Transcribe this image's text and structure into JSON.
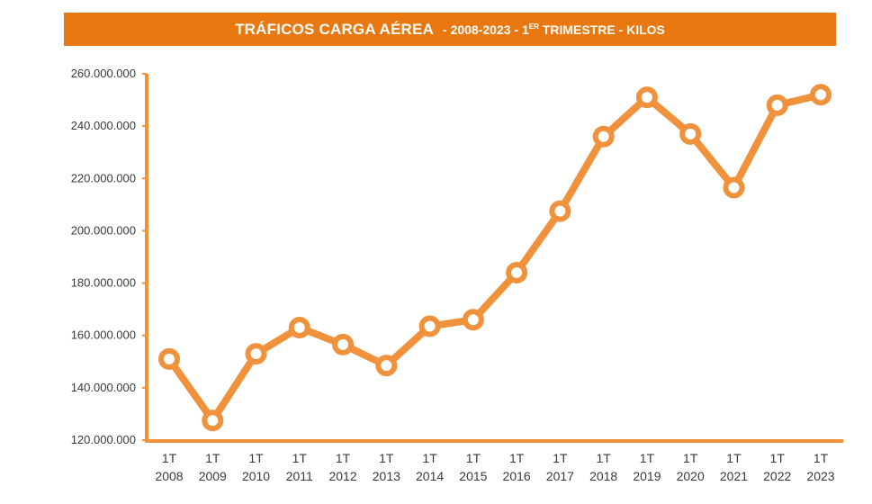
{
  "chart_data": {
    "type": "line",
    "title": "TRÁFICOS CARGA AÉREA",
    "subtitle_parts": {
      "separator": "-",
      "range": "2008-2023 - 1",
      "superscript": "ER",
      "rest": " TRIMESTRE - KILOS"
    },
    "xlabel": "",
    "ylabel": "",
    "ylim": [
      120000000,
      260000000
    ],
    "y_ticks": [
      120000000,
      140000000,
      160000000,
      180000000,
      200000000,
      220000000,
      240000000,
      260000000
    ],
    "y_tick_labels": [
      "120.000.000",
      "140.000.000",
      "160.000.000",
      "180.000.000",
      "200.000.000",
      "220.000.000",
      "240.000.000",
      "260.000.000"
    ],
    "grid": false,
    "categories": [
      {
        "line1": "1T",
        "line2": "2008"
      },
      {
        "line1": "1T",
        "line2": "2009"
      },
      {
        "line1": "1T",
        "line2": "2010"
      },
      {
        "line1": "1T",
        "line2": "2011"
      },
      {
        "line1": "1T",
        "line2": "2012"
      },
      {
        "line1": "1T",
        "line2": "2013"
      },
      {
        "line1": "1T",
        "line2": "2014"
      },
      {
        "line1": "1T",
        "line2": "2015"
      },
      {
        "line1": "1T",
        "line2": "2016"
      },
      {
        "line1": "1T",
        "line2": "2017"
      },
      {
        "line1": "1T",
        "line2": "2018"
      },
      {
        "line1": "1T",
        "line2": "2019"
      },
      {
        "line1": "1T",
        "line2": "2020"
      },
      {
        "line1": "1T",
        "line2": "2021"
      },
      {
        "line1": "1T",
        "line2": "2022"
      },
      {
        "line1": "1T",
        "line2": "2023"
      }
    ],
    "series": [
      {
        "values": [
          151000000,
          127500000,
          153000000,
          163000000,
          156500000,
          148500000,
          163500000,
          166000000,
          184000000,
          207500000,
          236000000,
          251000000,
          237000000,
          216500000,
          248000000,
          252000000
        ]
      }
    ],
    "colors": {
      "title_bar": "#e8780f",
      "line": "#f0913c",
      "axis": "#f0913c",
      "marker_fill": "#ffffff"
    }
  }
}
